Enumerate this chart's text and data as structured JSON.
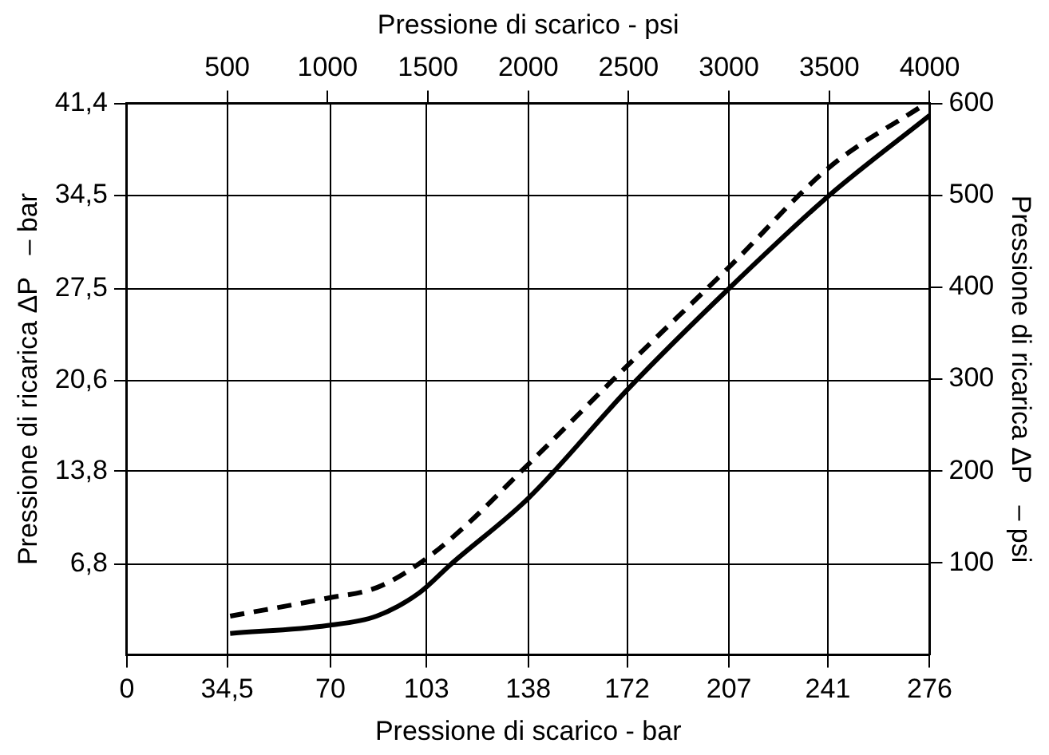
{
  "chart_data": {
    "type": "line",
    "xlabel": "Pressione di scarico - bar",
    "x2label": "Pressione di scarico - psi",
    "ylabel": "Pressione di ricarica ΔP   – bar",
    "y2label": "Pressione di ricarica ΔP   – psi",
    "xlim": [
      0,
      276
    ],
    "xticks": [
      0,
      {
        "value": 34.5,
        "label": "34,5"
      },
      70,
      103,
      138,
      172,
      207,
      241,
      276
    ],
    "x2lim": [
      0,
      4000
    ],
    "x2ticks": [
      500,
      1000,
      1500,
      2000,
      2500,
      3000,
      3500,
      4000
    ],
    "ylim": [
      0,
      41.4
    ],
    "yticks": [
      {
        "value": 6.8,
        "label": "6,8"
      },
      {
        "value": 13.8,
        "label": "13,8"
      },
      {
        "value": 20.6,
        "label": "20,6"
      },
      {
        "value": 27.5,
        "label": "27,5"
      },
      {
        "value": 34.5,
        "label": "34,5"
      },
      {
        "value": 41.4,
        "label": "41,4"
      }
    ],
    "y2lim": [
      0,
      600
    ],
    "y2ticks": [
      100,
      200,
      300,
      400,
      500,
      600
    ],
    "grid": true,
    "legend": false,
    "marker": "none",
    "series": [
      {
        "color": "#000000",
        "line_style": "solid",
        "x": [
          35.5,
          69,
          85.8,
          100.5,
          111.4,
          138,
          172.5,
          207,
          241.5,
          276
        ],
        "values": [
          1.6,
          2.2,
          2.9,
          4.65,
          6.8,
          11.75,
          20.0,
          27.5,
          34.5,
          40.5
        ]
      },
      {
        "color": "#000000",
        "line_style": "dashed",
        "x": [
          35.5,
          69,
          86,
          101.5,
          115,
          138,
          172.5,
          207,
          241.5,
          274
        ],
        "values": [
          2.9,
          4.25,
          5.05,
          7.0,
          9.4,
          14.3,
          21.8,
          29.1,
          36.6,
          41.3
        ]
      }
    ]
  }
}
